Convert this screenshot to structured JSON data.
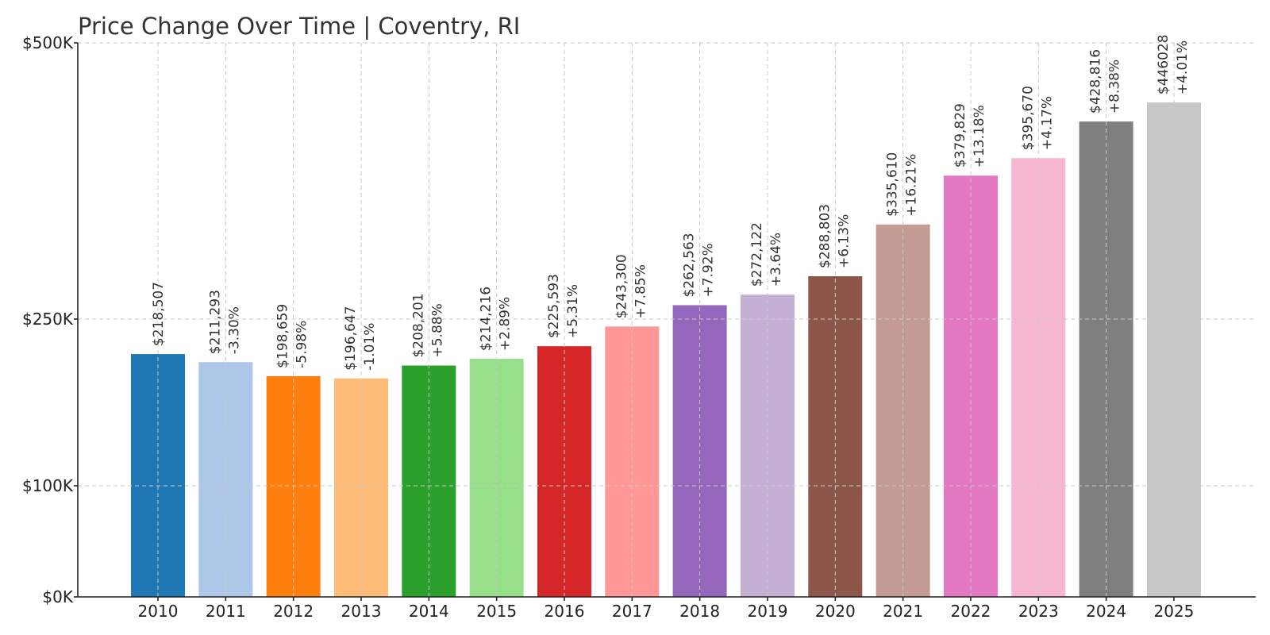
{
  "chart_data": {
    "type": "bar",
    "title": "Price Change Over Time | Coventry, RI",
    "xlabel": "",
    "ylabel": "",
    "categories": [
      "2010",
      "2011",
      "2012",
      "2013",
      "2014",
      "2015",
      "2016",
      "2017",
      "2018",
      "2019",
      "2020",
      "2021",
      "2022",
      "2023",
      "2024",
      "2025"
    ],
    "values": [
      218507,
      211293,
      198659,
      196647,
      208201,
      214216,
      225593,
      243300,
      262563,
      272122,
      288803,
      335610,
      379829,
      395670,
      428816,
      446028
    ],
    "value_labels": [
      "$218,507",
      "$211,293",
      "$198,659",
      "$196,647",
      "$208,201",
      "$214,216",
      "$225,593",
      "$243,300",
      "$262,563",
      "$272,122",
      "$288,803",
      "$335,610",
      "$379,829",
      "$395,670",
      "$428,816",
      "$446028"
    ],
    "change_labels": [
      "",
      "-3.30%",
      "-5.98%",
      "-1.01%",
      "+5.88%",
      "+2.89%",
      "+5.31%",
      "+7.85%",
      "+7.92%",
      "+3.64%",
      "+6.13%",
      "+16.21%",
      "+13.18%",
      "+4.17%",
      "+8.38%",
      "+4.01%"
    ],
    "colors": [
      "#1f77b4",
      "#aec7e8",
      "#ff7f0e",
      "#ffbb78",
      "#2ca02c",
      "#98df8a",
      "#d62728",
      "#ff9896",
      "#9467bd",
      "#c5b0d5",
      "#8c564b",
      "#c49c94",
      "#e377c2",
      "#f7b6d2",
      "#7f7f7f",
      "#c7c7c7"
    ],
    "y_ticks": [
      {
        "value": 0,
        "label": "$0K"
      },
      {
        "value": 100000,
        "label": "$100K"
      },
      {
        "value": 250000,
        "label": "$250K"
      },
      {
        "value": 500000,
        "label": "$500K"
      }
    ],
    "ylim": [
      0,
      500000
    ],
    "grid": true,
    "grid_style": "dashed"
  }
}
